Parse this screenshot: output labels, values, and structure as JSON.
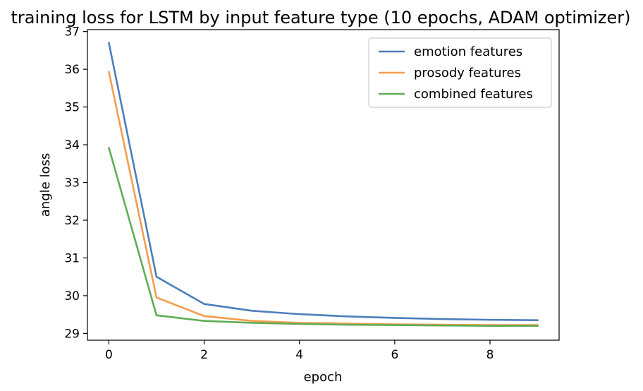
{
  "chart_data": {
    "type": "line",
    "title": "training loss for LSTM by input feature type (10 epochs, ADAM optimizer)",
    "xlabel": "epoch",
    "ylabel": "angle loss",
    "x": [
      0,
      1,
      2,
      3,
      4,
      5,
      6,
      7,
      8,
      9
    ],
    "xlim": [
      -0.45,
      9.45
    ],
    "ylim": [
      28.82,
      37.05
    ],
    "xticks": [
      "0",
      "2",
      "4",
      "6",
      "8"
    ],
    "xtick_values": [
      0,
      2,
      4,
      6,
      8
    ],
    "yticks": [
      "29",
      "30",
      "31",
      "32",
      "33",
      "34",
      "35",
      "36",
      "37"
    ],
    "ytick_values": [
      29,
      30,
      31,
      32,
      33,
      34,
      35,
      36,
      37
    ],
    "grid": false,
    "legend_position": "top-right",
    "series": [
      {
        "name": "emotion features",
        "color": "#4c7ebb",
        "values": [
          36.7,
          30.5,
          29.78,
          29.6,
          29.51,
          29.45,
          29.41,
          29.38,
          29.36,
          29.35
        ]
      },
      {
        "name": "prosody features",
        "color": "#f59c4c",
        "values": [
          35.93,
          29.95,
          29.46,
          29.33,
          29.28,
          29.26,
          29.24,
          29.23,
          29.22,
          29.22
        ]
      },
      {
        "name": "combined features",
        "color": "#5fad56",
        "values": [
          33.92,
          29.48,
          29.33,
          29.28,
          29.25,
          29.23,
          29.22,
          29.21,
          29.2,
          29.2
        ]
      }
    ]
  }
}
